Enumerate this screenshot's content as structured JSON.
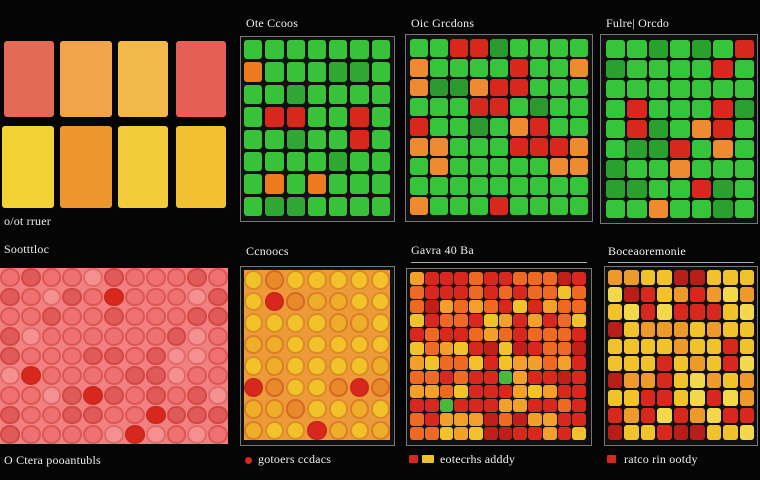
{
  "colors": {
    "red": "#d8281e",
    "orange": "#ee7a20",
    "yellow": "#f2c22a",
    "green": "#35c43a",
    "pink": "#ee6a6a",
    "frame": "#777777"
  },
  "panels": {
    "top_left": {
      "caption": "o/ot rruer"
    },
    "top_2": {
      "title": "Ote Ccoos"
    },
    "top_3": {
      "title": "Oic Grcdons"
    },
    "top_4": {
      "title": "Fulre| Orcdo"
    },
    "bottom_left": {
      "title": "Sootttloc",
      "caption": "O Ctera pooantubls"
    },
    "bottom_2": {
      "title": "Ccnoocs",
      "caption": "gotoers ccdacs"
    },
    "bottom_3": {
      "title": "Gavra 40 Ba",
      "caption": "eotecrhs adddy"
    },
    "bottom_4": {
      "title": "Boceaoremonie",
      "caption": "ratco rin ootdy"
    }
  }
}
